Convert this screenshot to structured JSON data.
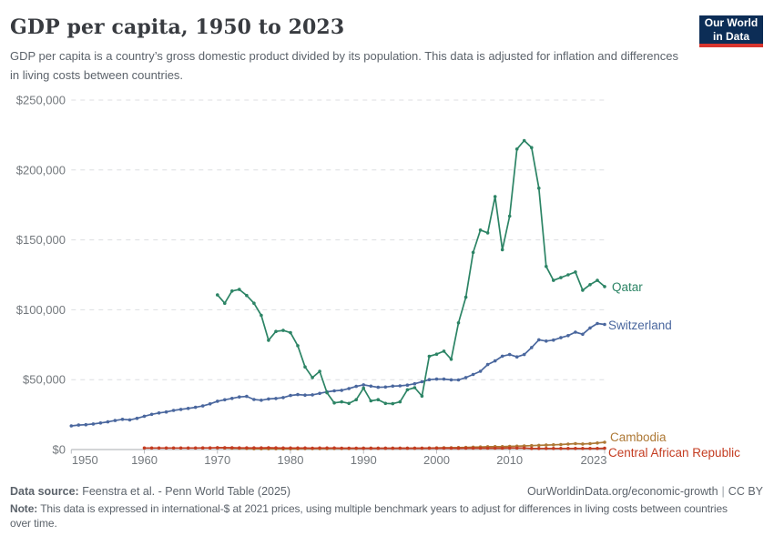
{
  "header": {
    "title": "GDP per capita, 1950 to 2023",
    "subtitle": "GDP per capita is a country’s gross domestic product divided by its population. This data is adjusted for inflation and differences in living costs between countries.",
    "logo": {
      "line1": "Our World",
      "line2": "in Data",
      "bg_color": "#0c2d56",
      "accent_color": "#d8352e"
    }
  },
  "chart_data": {
    "type": "line",
    "title": "GDP per capita, 1950 to 2023",
    "xlabel": "",
    "ylabel": "",
    "xlim": [
      1950,
      2023
    ],
    "ylim": [
      0,
      250000
    ],
    "x_ticks": [
      1950,
      1960,
      1970,
      1980,
      1990,
      2000,
      2010,
      2023
    ],
    "y_ticks": [
      0,
      50000,
      100000,
      150000,
      200000,
      250000
    ],
    "y_tick_prefix": "$",
    "grid": "horizontal-dashed",
    "legend_position": "labels-at-line-end",
    "draw_order": [
      1,
      0,
      2,
      3
    ],
    "series": [
      {
        "name": "Qatar",
        "color": "#2c8465",
        "start_year": 1970,
        "values": [
          110600,
          104700,
          113400,
          114500,
          110200,
          104700,
          96000,
          78200,
          84500,
          85200,
          83600,
          74300,
          59100,
          51500,
          55900,
          40600,
          33400,
          34100,
          33000,
          35700,
          43900,
          34800,
          35700,
          33000,
          32800,
          34100,
          42800,
          44300,
          38300,
          66700,
          68200,
          70400,
          64600,
          90600,
          109000,
          141000,
          157000,
          155000,
          181000,
          143000,
          167000,
          215000,
          221000,
          216000,
          187000,
          131000,
          121000,
          123000,
          125000,
          127000,
          114000,
          118000,
          121000,
          116600
        ]
      },
      {
        "name": "Switzerland",
        "color": "#4a679e",
        "start_year": 1950,
        "values": [
          16900,
          17500,
          17800,
          18300,
          19000,
          19800,
          20800,
          21600,
          21200,
          22300,
          23800,
          25200,
          26200,
          26900,
          28000,
          28700,
          29400,
          30200,
          31200,
          32700,
          34600,
          35600,
          36600,
          37600,
          38000,
          35800,
          35300,
          36200,
          36500,
          37200,
          38700,
          39300,
          38900,
          39100,
          40200,
          41300,
          42000,
          42400,
          43600,
          45200,
          46300,
          45400,
          44500,
          44700,
          45400,
          45600,
          46100,
          47100,
          48500,
          50000,
          50400,
          50400,
          49900,
          49800,
          51500,
          53700,
          56000,
          60800,
          63400,
          66800,
          68000,
          66300,
          68000,
          73000,
          78500,
          77600,
          78300,
          80000,
          81500,
          84000,
          82500,
          87000,
          90200,
          89500
        ]
      },
      {
        "name": "Cambodia",
        "color": "#ae7936",
        "start_year": 1970,
        "values": [
          1300,
          1200,
          1000,
          900,
          800,
          600,
          600,
          600,
          600,
          500,
          600,
          600,
          700,
          700,
          700,
          700,
          800,
          800,
          800,
          800,
          900,
          900,
          900,
          900,
          900,
          1000,
          1000,
          1000,
          1000,
          1100,
          1200,
          1300,
          1300,
          1400,
          1500,
          1700,
          1800,
          2000,
          2100,
          2100,
          2300,
          2400,
          2600,
          2800,
          3000,
          3200,
          3400,
          3600,
          3900,
          4200,
          4000,
          4200,
          4700,
          5200
        ]
      },
      {
        "name": "Central African Republic",
        "color": "#c43c21",
        "start_year": 1960,
        "values": [
          1100,
          1100,
          1100,
          1100,
          1100,
          1100,
          1100,
          1100,
          1200,
          1200,
          1300,
          1300,
          1300,
          1200,
          1200,
          1200,
          1200,
          1300,
          1200,
          1100,
          1100,
          1100,
          1100,
          1000,
          1100,
          1100,
          1100,
          1000,
          1000,
          1000,
          900,
          900,
          900,
          900,
          900,
          1000,
          900,
          900,
          1000,
          1000,
          1000,
          1000,
          1000,
          900,
          1000,
          1000,
          1000,
          1000,
          1000,
          1000,
          1100,
          1100,
          1100,
          800,
          800,
          800,
          800,
          800,
          800,
          800,
          800,
          800,
          800,
          900
        ]
      }
    ]
  },
  "footer": {
    "source_label": "Data source:",
    "source_text": "Feenstra et al. - Penn World Table (2025)",
    "link_text": "OurWorldinData.org/economic-growth",
    "divider": "|",
    "license_text": "CC BY",
    "note_label": "Note:",
    "note_text": "This data is expressed in international-$ at 2021 prices, using multiple benchmark years to adjust for differences in living costs between countries over time."
  }
}
